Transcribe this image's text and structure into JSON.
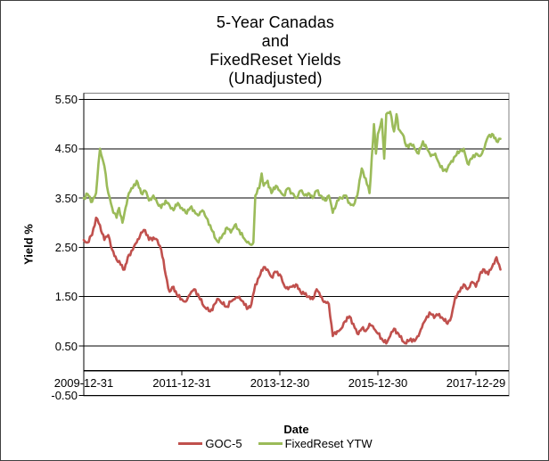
{
  "chart_data": {
    "type": "line",
    "title": "5-Year Canadas and FixedReset Yields (Unadjusted)",
    "title_lines": [
      "5-Year Canadas",
      "and",
      "FixedReset Yields",
      "(Unadjusted)"
    ],
    "xlabel": "Date",
    "ylabel": "Yield %",
    "ylim": [
      -0.5,
      5.5
    ],
    "y_tick_labels": [
      "5.50",
      "4.50",
      "3.50",
      "2.50",
      "1.50",
      "0.50",
      "-0.50"
    ],
    "y_tick_values": [
      5.5,
      4.5,
      3.5,
      2.5,
      1.5,
      0.5,
      -0.5
    ],
    "x_tick_labels": [
      "2009-12-31",
      "2011-12-31",
      "2013-12-30",
      "2015-12-30",
      "2017-12-29"
    ],
    "x_tick_positions_years": [
      0,
      2,
      4,
      6,
      8
    ],
    "x_range_years": [
      0,
      8.5
    ],
    "grid": true,
    "legend_position": "bottom",
    "axis_color": "#000000",
    "plot_border_color": "#808080",
    "series": [
      {
        "name": "GOC-5",
        "color": "#C0504D",
        "points": [
          [
            0,
            2.65
          ],
          [
            0.08,
            2.6
          ],
          [
            0.17,
            2.75
          ],
          [
            0.25,
            3.1
          ],
          [
            0.33,
            2.95
          ],
          [
            0.42,
            2.65
          ],
          [
            0.5,
            2.75
          ],
          [
            0.58,
            2.45
          ],
          [
            0.67,
            2.25
          ],
          [
            0.75,
            2.15
          ],
          [
            0.83,
            2.05
          ],
          [
            0.92,
            2.35
          ],
          [
            1,
            2.45
          ],
          [
            1.08,
            2.6
          ],
          [
            1.17,
            2.8
          ],
          [
            1.25,
            2.85
          ],
          [
            1.33,
            2.65
          ],
          [
            1.42,
            2.7
          ],
          [
            1.5,
            2.65
          ],
          [
            1.58,
            2.45
          ],
          [
            1.67,
            1.95
          ],
          [
            1.75,
            1.6
          ],
          [
            1.83,
            1.7
          ],
          [
            1.92,
            1.5
          ],
          [
            2,
            1.45
          ],
          [
            2.08,
            1.4
          ],
          [
            2.17,
            1.55
          ],
          [
            2.25,
            1.65
          ],
          [
            2.33,
            1.55
          ],
          [
            2.42,
            1.35
          ],
          [
            2.5,
            1.25
          ],
          [
            2.58,
            1.2
          ],
          [
            2.67,
            1.35
          ],
          [
            2.75,
            1.45
          ],
          [
            2.83,
            1.35
          ],
          [
            2.92,
            1.3
          ],
          [
            3,
            1.4
          ],
          [
            3.08,
            1.45
          ],
          [
            3.17,
            1.5
          ],
          [
            3.25,
            1.4
          ],
          [
            3.33,
            1.25
          ],
          [
            3.42,
            1.35
          ],
          [
            3.5,
            1.75
          ],
          [
            3.58,
            1.9
          ],
          [
            3.67,
            2.1
          ],
          [
            3.75,
            2.05
          ],
          [
            3.83,
            1.9
          ],
          [
            3.92,
            2
          ],
          [
            4,
            1.95
          ],
          [
            4.08,
            1.75
          ],
          [
            4.17,
            1.65
          ],
          [
            4.25,
            1.7
          ],
          [
            4.33,
            1.75
          ],
          [
            4.42,
            1.6
          ],
          [
            4.5,
            1.55
          ],
          [
            4.58,
            1.5
          ],
          [
            4.67,
            1.45
          ],
          [
            4.75,
            1.65
          ],
          [
            4.83,
            1.5
          ],
          [
            4.92,
            1.4
          ],
          [
            5,
            1.35
          ],
          [
            5.08,
            0.7
          ],
          [
            5.17,
            0.8
          ],
          [
            5.25,
            0.85
          ],
          [
            5.33,
            1
          ],
          [
            5.42,
            1.1
          ],
          [
            5.5,
            0.95
          ],
          [
            5.58,
            0.75
          ],
          [
            5.67,
            0.85
          ],
          [
            5.75,
            0.8
          ],
          [
            5.83,
            0.95
          ],
          [
            5.92,
            0.85
          ],
          [
            6,
            0.75
          ],
          [
            6.08,
            0.65
          ],
          [
            6.17,
            0.55
          ],
          [
            6.25,
            0.7
          ],
          [
            6.33,
            0.85
          ],
          [
            6.42,
            0.75
          ],
          [
            6.5,
            0.6
          ],
          [
            6.58,
            0.55
          ],
          [
            6.67,
            0.65
          ],
          [
            6.75,
            0.6
          ],
          [
            6.83,
            0.7
          ],
          [
            6.92,
            0.95
          ],
          [
            7,
            1.1
          ],
          [
            7.08,
            1.15
          ],
          [
            7.17,
            1.1
          ],
          [
            7.25,
            1.15
          ],
          [
            7.33,
            1.05
          ],
          [
            7.42,
            0.95
          ],
          [
            7.5,
            1.1
          ],
          [
            7.58,
            1.5
          ],
          [
            7.67,
            1.6
          ],
          [
            7.75,
            1.75
          ],
          [
            7.83,
            1.65
          ],
          [
            7.92,
            1.8
          ],
          [
            8,
            1.7
          ],
          [
            8.08,
            1.95
          ],
          [
            8.17,
            2.05
          ],
          [
            8.25,
            1.95
          ],
          [
            8.33,
            2.1
          ],
          [
            8.42,
            2.3
          ],
          [
            8.5,
            2.05
          ]
        ]
      },
      {
        "name": "FixedReset YTW",
        "color": "#9BBB59",
        "points": [
          [
            0,
            3.5
          ],
          [
            0.08,
            3.58
          ],
          [
            0.17,
            3.42
          ],
          [
            0.25,
            3.6
          ],
          [
            0.3,
            4.2
          ],
          [
            0.33,
            4.5
          ],
          [
            0.38,
            4.3
          ],
          [
            0.42,
            4.15
          ],
          [
            0.5,
            3.6
          ],
          [
            0.58,
            3.3
          ],
          [
            0.67,
            3.1
          ],
          [
            0.72,
            3.3
          ],
          [
            0.79,
            3
          ],
          [
            0.83,
            3.2
          ],
          [
            0.92,
            3.6
          ],
          [
            1,
            3.7
          ],
          [
            1.08,
            3.85
          ],
          [
            1.17,
            3.6
          ],
          [
            1.25,
            3.65
          ],
          [
            1.33,
            3.45
          ],
          [
            1.42,
            3.55
          ],
          [
            1.5,
            3.4
          ],
          [
            1.58,
            3.3
          ],
          [
            1.67,
            3.45
          ],
          [
            1.75,
            3.35
          ],
          [
            1.83,
            3.25
          ],
          [
            1.92,
            3.4
          ],
          [
            2,
            3.3
          ],
          [
            2.08,
            3.2
          ],
          [
            2.17,
            3.3
          ],
          [
            2.25,
            3.25
          ],
          [
            2.33,
            3.15
          ],
          [
            2.42,
            3.25
          ],
          [
            2.5,
            3.1
          ],
          [
            2.58,
            2.95
          ],
          [
            2.67,
            2.7
          ],
          [
            2.75,
            2.6
          ],
          [
            2.83,
            2.75
          ],
          [
            2.92,
            2.9
          ],
          [
            3,
            2.8
          ],
          [
            3.08,
            2.95
          ],
          [
            3.17,
            2.85
          ],
          [
            3.25,
            2.7
          ],
          [
            3.33,
            2.6
          ],
          [
            3.42,
            2.55
          ],
          [
            3.46,
            2.6
          ],
          [
            3.5,
            3.55
          ],
          [
            3.58,
            3.7
          ],
          [
            3.63,
            4
          ],
          [
            3.67,
            3.75
          ],
          [
            3.75,
            3.85
          ],
          [
            3.83,
            3.6
          ],
          [
            3.92,
            3.75
          ],
          [
            4,
            3.65
          ],
          [
            4.08,
            3.55
          ],
          [
            4.17,
            3.7
          ],
          [
            4.25,
            3.6
          ],
          [
            4.33,
            3.5
          ],
          [
            4.42,
            3.65
          ],
          [
            4.5,
            3.55
          ],
          [
            4.58,
            3.6
          ],
          [
            4.67,
            3.5
          ],
          [
            4.75,
            3.65
          ],
          [
            4.83,
            3.55
          ],
          [
            4.92,
            3.45
          ],
          [
            5,
            3.55
          ],
          [
            5.08,
            3.2
          ],
          [
            5.17,
            3.45
          ],
          [
            5.25,
            3.5
          ],
          [
            5.33,
            3.55
          ],
          [
            5.42,
            3.4
          ],
          [
            5.5,
            3.35
          ],
          [
            5.58,
            3.55
          ],
          [
            5.67,
            4.1
          ],
          [
            5.75,
            3.9
          ],
          [
            5.83,
            3.6
          ],
          [
            5.92,
            5
          ],
          [
            5.96,
            4.4
          ],
          [
            6,
            4.8
          ],
          [
            6.08,
            5.1
          ],
          [
            6.13,
            4.3
          ],
          [
            6.17,
            5.2
          ],
          [
            6.25,
            5.25
          ],
          [
            6.33,
            4.85
          ],
          [
            6.38,
            5.2
          ],
          [
            6.42,
            4.9
          ],
          [
            6.5,
            4.8
          ],
          [
            6.58,
            4.55
          ],
          [
            6.67,
            4.6
          ],
          [
            6.75,
            4.5
          ],
          [
            6.83,
            4.4
          ],
          [
            6.92,
            4.65
          ],
          [
            7,
            4.5
          ],
          [
            7.08,
            4.35
          ],
          [
            7.17,
            4.4
          ],
          [
            7.25,
            4.2
          ],
          [
            7.33,
            4.05
          ],
          [
            7.42,
            4.1
          ],
          [
            7.5,
            4.25
          ],
          [
            7.58,
            4.35
          ],
          [
            7.67,
            4.45
          ],
          [
            7.75,
            4.5
          ],
          [
            7.83,
            4.2
          ],
          [
            7.92,
            4.3
          ],
          [
            8,
            4.4
          ],
          [
            8.08,
            4.35
          ],
          [
            8.17,
            4.5
          ],
          [
            8.25,
            4.75
          ],
          [
            8.33,
            4.8
          ],
          [
            8.42,
            4.65
          ],
          [
            8.5,
            4.7
          ]
        ]
      }
    ]
  }
}
